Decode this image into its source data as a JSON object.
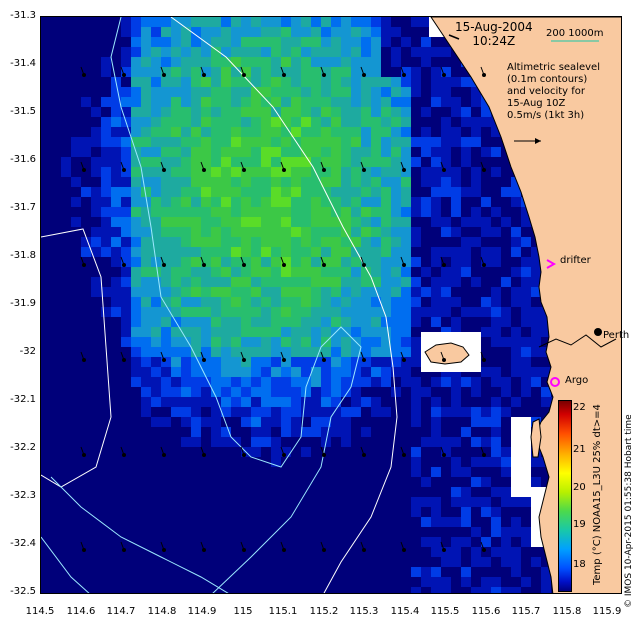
{
  "header": {
    "date": "15-Aug-2004",
    "time": "10:24Z",
    "scale_label": "200  1000m"
  },
  "legend": {
    "line1": "Altimetric sealevel",
    "line2": "(0.1m contours)",
    "line3": "and velocity for",
    "line4": "15-Aug 10Z",
    "line5": "0.5m/s (1kt 3h)"
  },
  "places": {
    "drifter": "drifter",
    "argo": "Argo",
    "city": "Perth"
  },
  "colorbar": {
    "title": "Temp (°C) NOAA15_L3U 25% dt>=4",
    "ticks": [
      "22",
      "21",
      "20",
      "19",
      "18"
    ]
  },
  "credit": "© IMOS 10-Apr-2015 01:55:38 Hobart time",
  "axes": {
    "y_ticks": [
      "-31.3",
      "-31.4",
      "-31.5",
      "-31.6",
      "-31.7",
      "-31.8",
      "-31.9",
      "-32",
      "-32.1",
      "-32.2",
      "-32.3",
      "-32.4",
      "-32.5"
    ],
    "x_ticks": [
      "114.5",
      "114.6",
      "114.7",
      "114.8",
      "114.9",
      "115",
      "115.1",
      "115.2",
      "115.3",
      "115.4",
      "115.5",
      "115.6",
      "115.7",
      "115.8",
      "115.9"
    ]
  },
  "colors": {
    "land": "#f9c9a0",
    "deep_ocean": "#00007a",
    "drifter_marker": "#ff00ff",
    "argo_marker": "#ff00ff",
    "contour": "#9be8ff",
    "isobath": "#ffffff"
  }
}
